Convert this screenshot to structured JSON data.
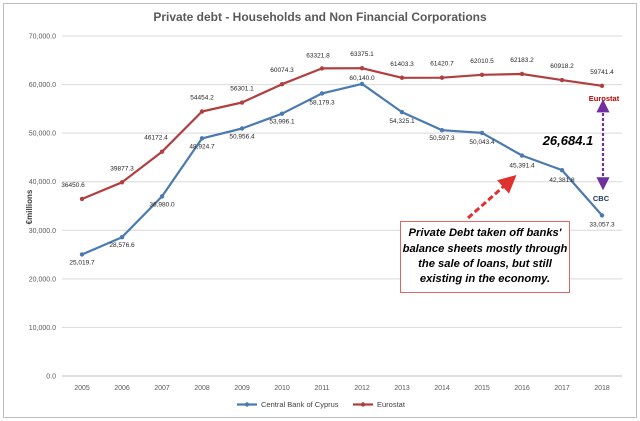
{
  "colors": {
    "cbc": "#4a7ab0",
    "eurostat": "#b04040",
    "gridline": "#d9d9d9",
    "gap_arrow": "#7030a0",
    "callout_arrow": "#e03030",
    "box_border": "#e06666"
  },
  "chart_data": {
    "type": "line",
    "title": "Private debt - Households and Non Financial Corporations",
    "xlabel": "",
    "ylabel": "€millions",
    "ylim": [
      0,
      70000
    ],
    "y_ticks": [
      "0.0",
      "10,000.0",
      "20,000.0",
      "30,000.0",
      "40,000.0",
      "50,000.0",
      "60,000.0",
      "70,000.0"
    ],
    "grid": "horizontal",
    "legend_position": "bottom",
    "categories": [
      "2005",
      "2006",
      "2007",
      "2008",
      "2009",
      "2010",
      "2011",
      "2012",
      "2013",
      "2014",
      "2015",
      "2016",
      "2017",
      "2018"
    ],
    "series": [
      {
        "name": "Central Bank of Cyprus",
        "values": [
          25019.7,
          28576.6,
          36980.0,
          48924.7,
          50956.4,
          53996.1,
          58179.3,
          60140.0,
          54325.1,
          50597.3,
          50043.4,
          45391.4,
          42381.8,
          33057.3
        ],
        "labels": [
          "25,019.7",
          "28,576.6",
          "36,980.0",
          "48,924.7",
          "50,956.4",
          "53,996.1",
          "58,179.3",
          "60,140.0",
          "54,325.1",
          "50,597.3",
          "50,043.4",
          "45,391.4",
          "42,381.8",
          "33,057.3"
        ]
      },
      {
        "name": "Eurostat",
        "values": [
          36450.6,
          39877.3,
          46172.4,
          54454.2,
          56301.1,
          60074.3,
          63321.8,
          63375.1,
          61403.3,
          61420.7,
          62010.5,
          62183.2,
          60918.2,
          59741.4
        ],
        "labels": [
          "36450.6",
          "39877.3",
          "46172.4",
          "54454.2",
          "56301.1",
          "60074.3",
          "63321.8",
          "63375.1",
          "61403.3",
          "61420.7",
          "62010.5",
          "62183.2",
          "60918.2",
          "59741.4"
        ]
      }
    ],
    "annotations": {
      "gap_value": "26,684.1",
      "eurostat_tag": "Eurostat",
      "cbc_tag": "CBC",
      "callout": "Private Debt taken off banks' balance sheets mostly through the sale of loans, but still existing in the economy."
    }
  }
}
